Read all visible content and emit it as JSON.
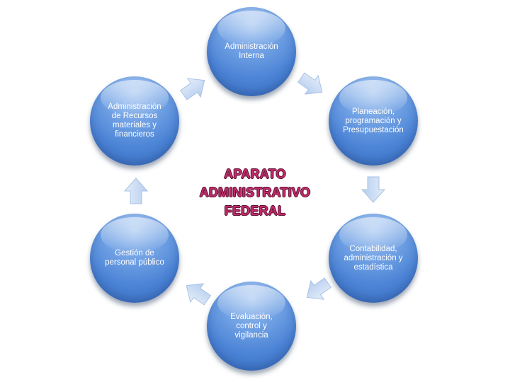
{
  "center_title": "APARATO\nADMINISTRATIVO\nFEDERAL",
  "nodes": [
    {
      "label": "Administración\nInterna"
    },
    {
      "label": "Planeación,\nprogramación y\nPresupuestación"
    },
    {
      "label": "Contabilidad,\nadministración y\nestadística"
    },
    {
      "label": "Evaluación,\ncontrol y\nvigilancia"
    },
    {
      "label": "Gestión de\npersonal público"
    },
    {
      "label": "Administración\nde Recursos\nmateriales y\nfinancieros"
    }
  ],
  "colors": {
    "node_fill": "#4c84d6",
    "arrow_fill": "#c9dcf3",
    "title_text": "#c12b6a",
    "node_text": "#ffffff"
  }
}
